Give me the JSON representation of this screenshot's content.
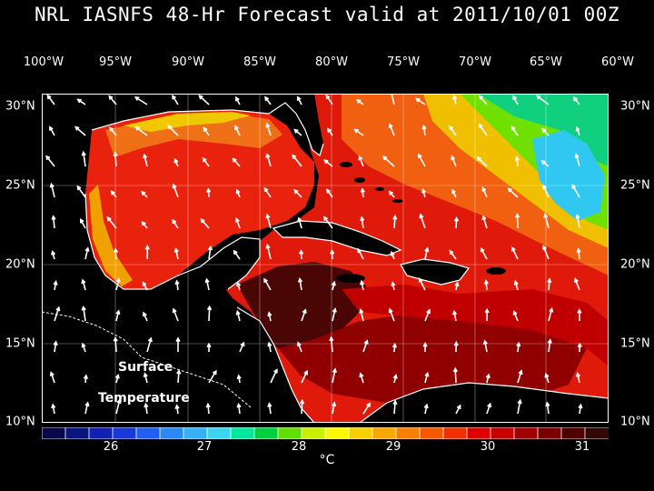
{
  "title": "NRL IASNFS  48-Hr Forecast valid at 2011/10/01 00Z",
  "lon_labels": [
    "100°W",
    "95°W",
    "90°W",
    "85°W",
    "80°W",
    "75°W",
    "70°W",
    "65°W",
    "60°W"
  ],
  "lat_labels": [
    "30°N",
    "25°N",
    "20°N",
    "15°N",
    "10°N"
  ],
  "map_labels": {
    "line1": "Surface",
    "line2": "Temperature"
  },
  "colorbar": {
    "ticks": [
      "26",
      "27",
      "28",
      "29",
      "30",
      "31"
    ],
    "unit": "°C",
    "colors": [
      "#08084a",
      "#0a1580",
      "#1020b0",
      "#1838d8",
      "#2060f0",
      "#2a8af5",
      "#35b2f5",
      "#3ad6f0",
      "#00e8a0",
      "#00d040",
      "#60e000",
      "#c8f000",
      "#f8f800",
      "#f8d000",
      "#f8a800",
      "#f88000",
      "#f85800",
      "#f03000",
      "#e00000",
      "#c80000",
      "#a00000",
      "#7a0000",
      "#500000",
      "#300808"
    ]
  },
  "colors": {
    "land": "#000000",
    "coast": "#ffffff",
    "ocean_warm": "#e01010",
    "ocean_hot": "#3a0505"
  }
}
